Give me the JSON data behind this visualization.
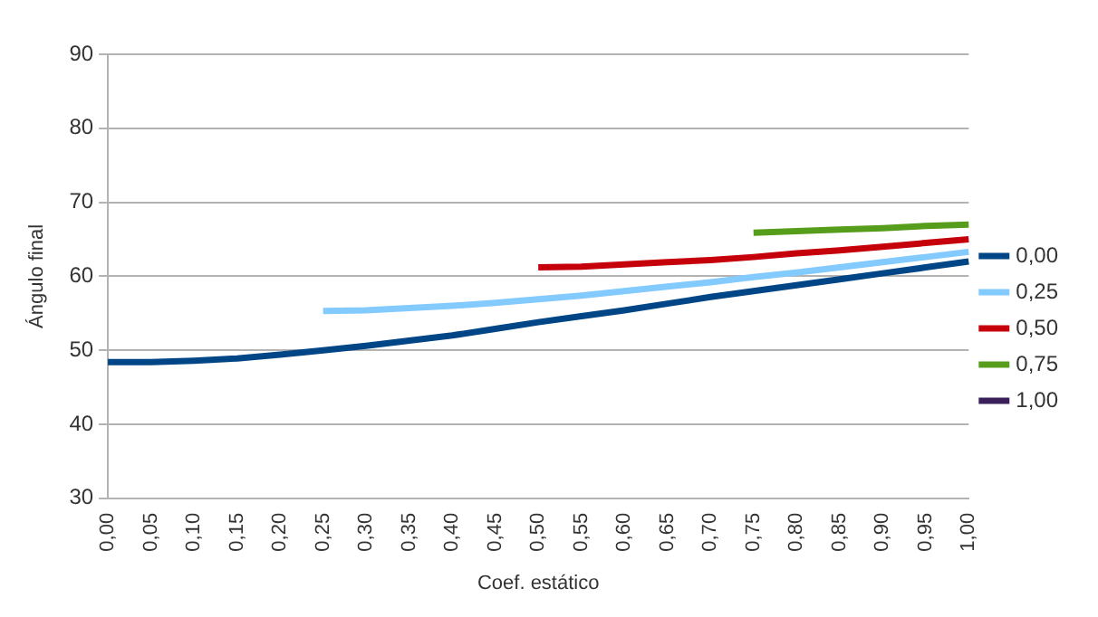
{
  "chart_data": {
    "type": "line",
    "xlabel": "Coef. estático",
    "ylabel": "Ángulo final",
    "categories": [
      "0,00",
      "0,05",
      "0,10",
      "0,15",
      "0,20",
      "0,25",
      "0,30",
      "0,35",
      "0,40",
      "0,45",
      "0,50",
      "0,55",
      "0,60",
      "0,65",
      "0,70",
      "0,75",
      "0,80",
      "0,85",
      "0,90",
      "0,95",
      "1,00"
    ],
    "series": [
      {
        "name": "0,00",
        "color": "#004586",
        "values": [
          48.4,
          48.4,
          48.6,
          48.9,
          49.4,
          50.0,
          50.6,
          51.3,
          52.0,
          52.9,
          53.8,
          54.6,
          55.4,
          56.3,
          57.2,
          58.0,
          58.8,
          59.6,
          60.4,
          61.2,
          62.0
        ]
      },
      {
        "name": "0,25",
        "color": "#83caff",
        "values": [
          null,
          null,
          null,
          null,
          null,
          55.3,
          55.4,
          55.7,
          56.0,
          56.4,
          56.9,
          57.4,
          58.0,
          58.6,
          59.2,
          59.9,
          60.5,
          61.2,
          61.9,
          62.6,
          63.3
        ]
      },
      {
        "name": "0,50",
        "color": "#c5000b",
        "values": [
          null,
          null,
          null,
          null,
          null,
          null,
          null,
          null,
          null,
          null,
          61.2,
          61.3,
          61.6,
          61.9,
          62.2,
          62.6,
          63.1,
          63.5,
          64.0,
          64.5,
          65.0
        ]
      },
      {
        "name": "0,75",
        "color": "#579d1c",
        "values": [
          null,
          null,
          null,
          null,
          null,
          null,
          null,
          null,
          null,
          null,
          null,
          null,
          null,
          null,
          null,
          65.9,
          66.1,
          66.3,
          66.5,
          66.8,
          67.0
        ]
      },
      {
        "name": "1,00",
        "color": "#3b1f5a",
        "values": [
          null,
          null,
          null,
          null,
          null,
          null,
          null,
          null,
          null,
          null,
          null,
          null,
          null,
          null,
          null,
          null,
          null,
          null,
          null,
          null,
          null
        ]
      }
    ],
    "ylim": [
      30,
      90
    ],
    "yticks": [
      30,
      40,
      50,
      60,
      70,
      80,
      90
    ],
    "grid": "y",
    "legend": "right",
    "marker": "none",
    "line_style": "solid"
  }
}
